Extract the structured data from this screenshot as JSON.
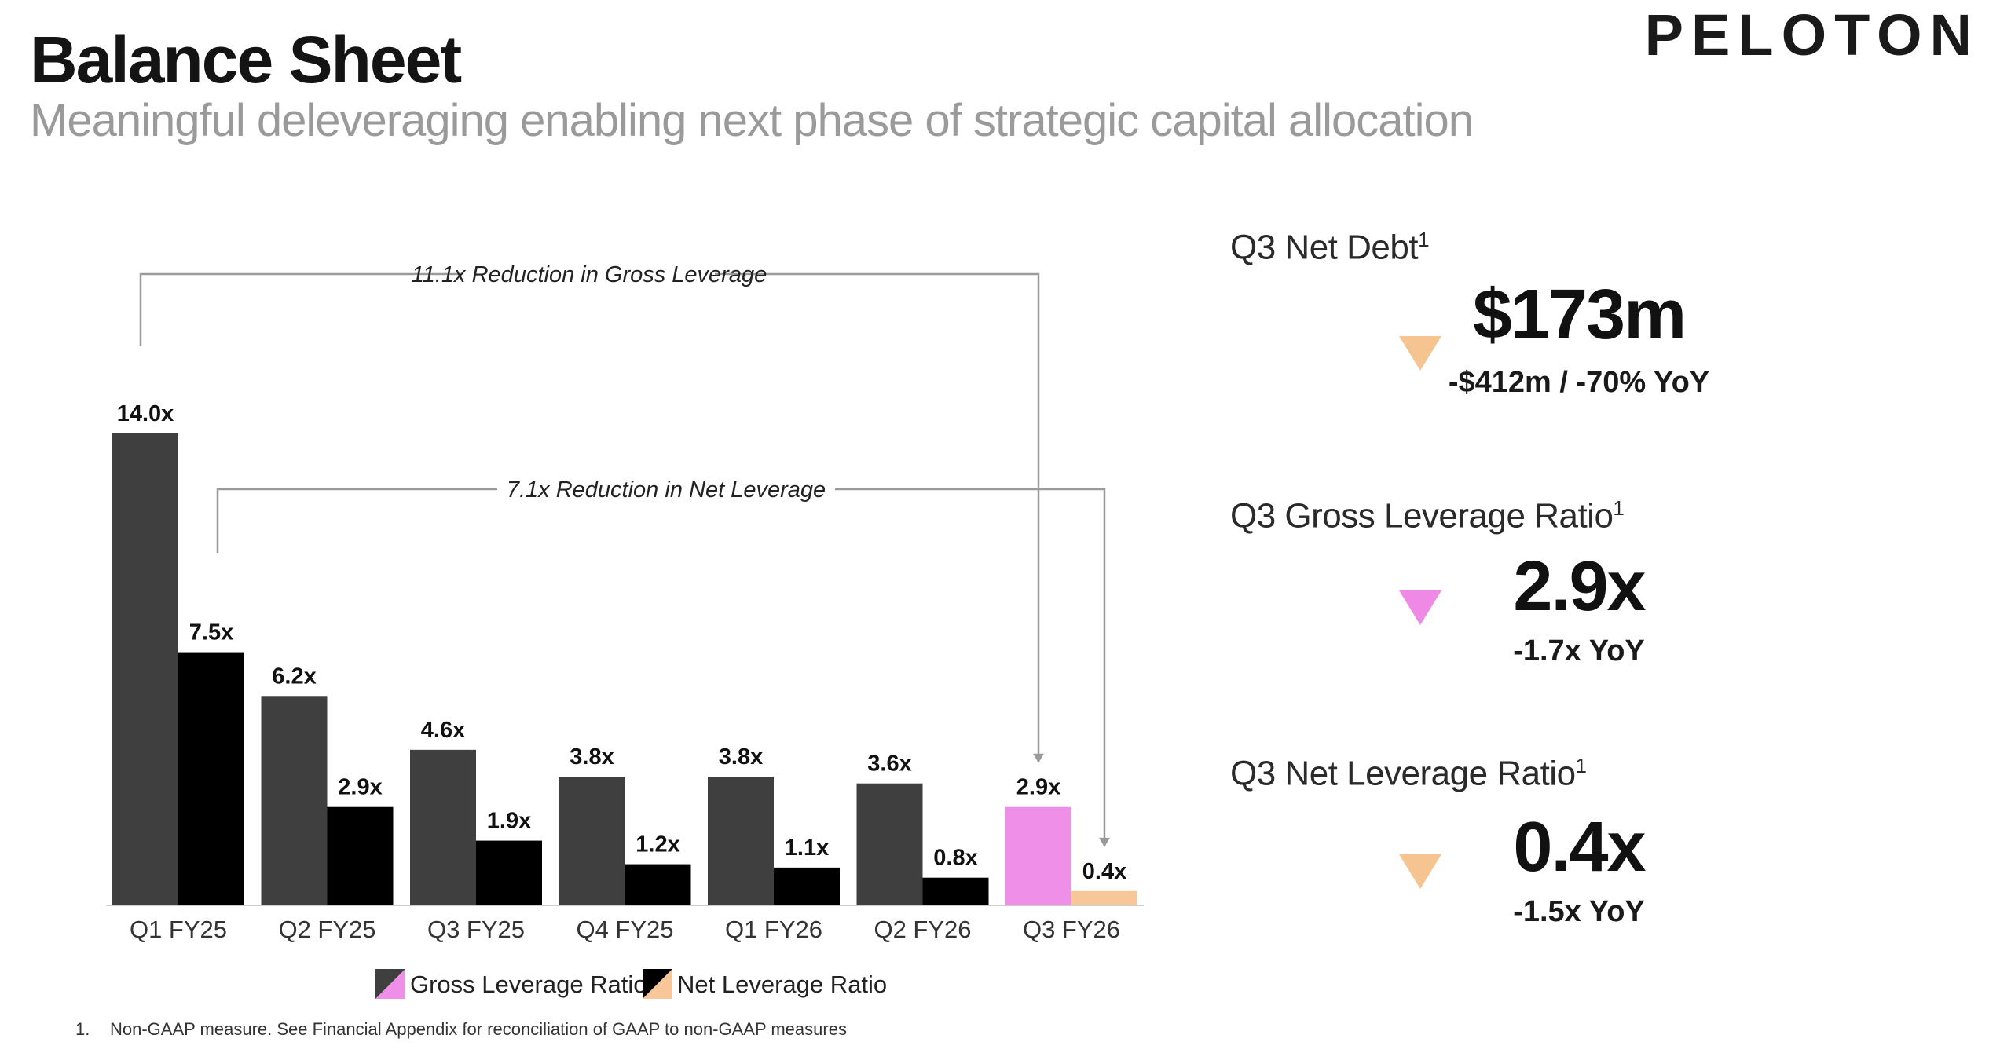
{
  "header": {
    "title": "Balance Sheet",
    "subtitle": "Meaningful deleveraging enabling next phase of strategic capital allocation",
    "logo": "PELOTON"
  },
  "colors": {
    "gross_bar": "#3f3f3f",
    "net_bar": "#000000",
    "gross_highlight": "#ef8fe8",
    "net_highlight": "#f7c79a",
    "annotation_line": "#9a9a9a",
    "triangle_net_debt": "#f5c490",
    "triangle_gross": "#ee8ae6",
    "triangle_net": "#f5c490"
  },
  "chart_data": {
    "type": "bar",
    "categories": [
      "Q1 FY25",
      "Q2 FY25",
      "Q3 FY25",
      "Q4 FY25",
      "Q1 FY26",
      "Q2 FY26",
      "Q3 FY26"
    ],
    "series": [
      {
        "name": "Gross Leverage Ratio",
        "values": [
          14.0,
          6.2,
          4.6,
          3.8,
          3.8,
          3.6,
          2.9
        ],
        "labels": [
          "14.0x",
          "6.2x",
          "4.6x",
          "3.8x",
          "3.8x",
          "3.6x",
          "2.9x"
        ]
      },
      {
        "name": "Net Leverage Ratio",
        "values": [
          7.5,
          2.9,
          1.9,
          1.2,
          1.1,
          0.8,
          0.4
        ],
        "labels": [
          "7.5x",
          "2.9x",
          "1.9x",
          "1.2x",
          "1.1x",
          "0.8x",
          "0.4x"
        ]
      }
    ],
    "highlight_category": "Q3 FY26",
    "ylim": [
      0,
      14.0
    ],
    "annotations": [
      {
        "text": "11.1x Reduction in Gross Leverage",
        "from": "Q1 FY25",
        "to": "Q3 FY26",
        "series": "Gross Leverage Ratio"
      },
      {
        "text": "7.1x Reduction in Net Leverage",
        "from": "Q1 FY25",
        "to": "Q3 FY26",
        "series": "Net Leverage Ratio"
      }
    ],
    "legend_position": "bottom"
  },
  "metrics": [
    {
      "label": "Q3 Net Debt",
      "sup": "1",
      "value": "$173m",
      "change": "-$412m / -70% YoY",
      "direction": "down"
    },
    {
      "label": "Q3 Gross Leverage Ratio",
      "sup": "1",
      "value": "2.9x",
      "change": "-1.7x YoY",
      "direction": "down"
    },
    {
      "label": "Q3 Net Leverage Ratio",
      "sup": "1",
      "value": "0.4x",
      "change": "-1.5x YoY",
      "direction": "down"
    }
  ],
  "footnote": {
    "number": "1.",
    "text": "Non-GAAP measure. See Financial Appendix for reconciliation of GAAP to non-GAAP measures"
  }
}
